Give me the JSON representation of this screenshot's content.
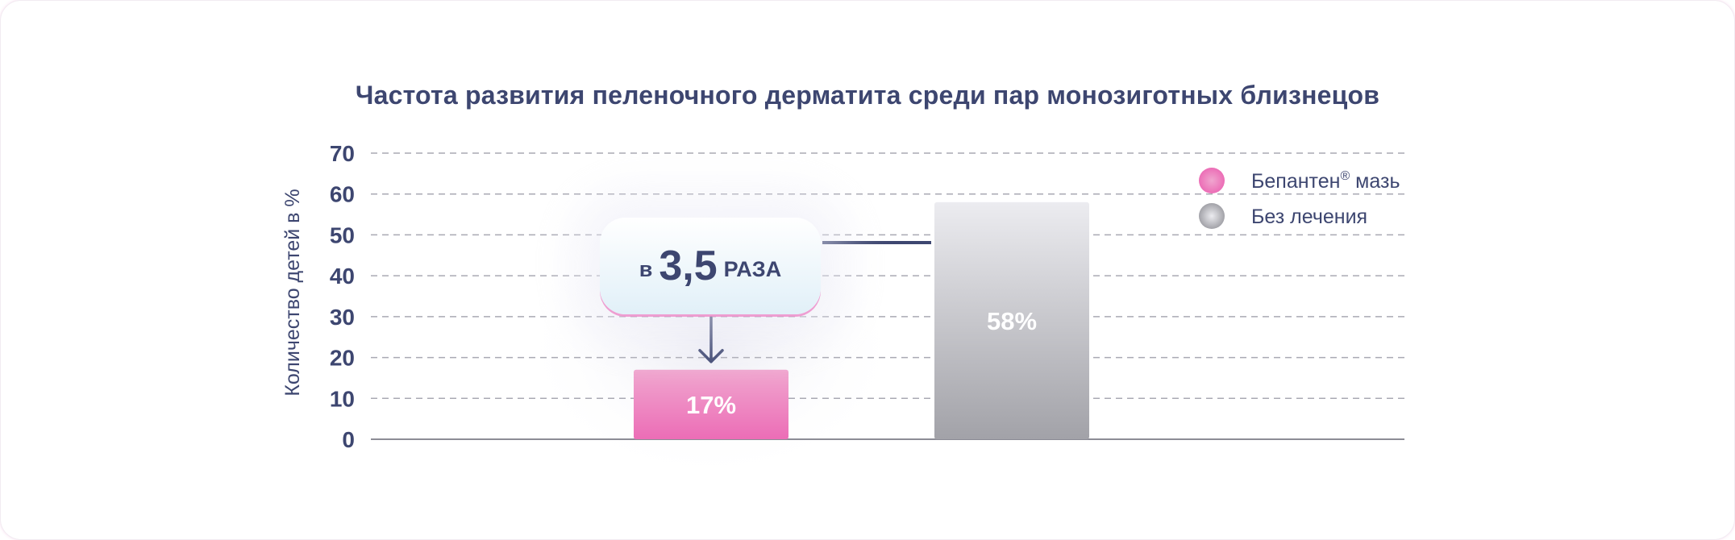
{
  "chart_data": {
    "type": "bar",
    "title": "Частота развития пеленочного дерматита среди пар монозиготных близнецов",
    "xlabel": "",
    "ylabel": "Количество детей в %",
    "ylim": [
      0,
      70
    ],
    "yticks": [
      0,
      10,
      20,
      30,
      40,
      50,
      60,
      70
    ],
    "grid": true,
    "legend_position": "top-right",
    "series": [
      {
        "name": "Бепантен® мазь",
        "value": 17,
        "label": "17%",
        "color_top": "#f0a6cf",
        "color_bottom": "#ec6db6"
      },
      {
        "name": "Без лечения",
        "value": 58,
        "label": "58%",
        "color_top": "#ececf0",
        "color_bottom": "#a2a2a8"
      }
    ],
    "legend": {
      "items": [
        {
          "name": "Бепантен",
          "sup": "®",
          "suffix": " мазь"
        },
        {
          "name": "Без лечения",
          "sup": "",
          "suffix": ""
        }
      ]
    },
    "annotation": {
      "prefix": "в",
      "number": "3,5",
      "suffix": "РАЗА"
    }
  },
  "colors": {
    "text": "#3d4670",
    "grid": "#a9a9b3",
    "axis": "#8c8c96"
  }
}
